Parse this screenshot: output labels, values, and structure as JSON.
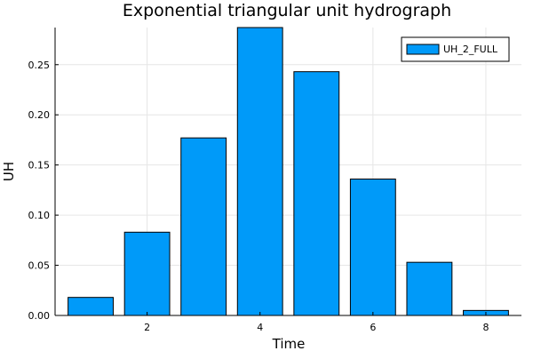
{
  "chart_data": {
    "type": "bar",
    "title": "Exponential triangular unit hydrograph",
    "xlabel": "Time",
    "ylabel": "UH",
    "x": [
      1,
      2,
      3,
      4,
      5,
      6,
      7,
      8
    ],
    "series": [
      {
        "name": "UH_2_FULL",
        "values": [
          0.018,
          0.083,
          0.177,
          0.287,
          0.243,
          0.136,
          0.053,
          0.005
        ],
        "color": "#009af9"
      }
    ],
    "xlim": [
      0.37,
      8.63
    ],
    "ylim": [
      0.0,
      0.287
    ],
    "x_ticks": [
      {
        "value": 2,
        "label": "2"
      },
      {
        "value": 4,
        "label": "4"
      },
      {
        "value": 6,
        "label": "6"
      },
      {
        "value": 8,
        "label": "8"
      }
    ],
    "y_ticks": [
      {
        "value": 0.0,
        "label": "0.00"
      },
      {
        "value": 0.05,
        "label": "0.05"
      },
      {
        "value": 0.1,
        "label": "0.10"
      },
      {
        "value": 0.15,
        "label": "0.15"
      },
      {
        "value": 0.2,
        "label": "0.20"
      },
      {
        "value": 0.25,
        "label": "0.25"
      }
    ],
    "bar_width": 0.8,
    "grid": true,
    "legend_position": "top-right"
  }
}
